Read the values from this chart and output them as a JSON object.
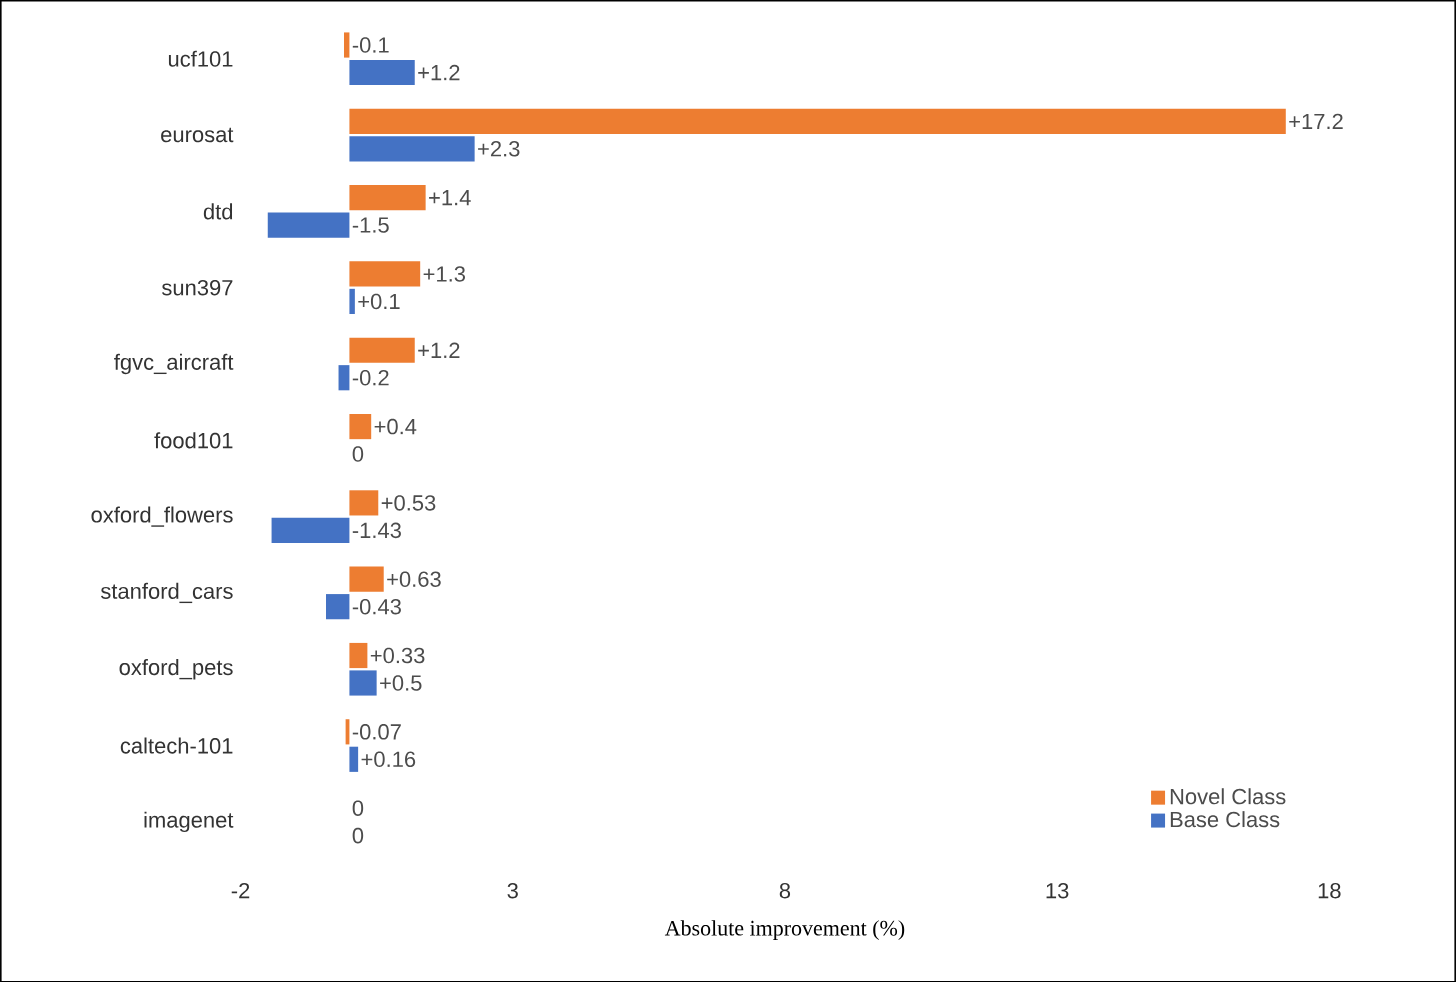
{
  "chart_data": {
    "type": "bar",
    "orientation": "horizontal",
    "xlabel": "Absolute improvement (%)",
    "categories": [
      "ucf101",
      "eurosat",
      "dtd",
      "sun397",
      "fgvc_aircraft",
      "food101",
      "oxford_flowers",
      "stanford_cars",
      "oxford_pets",
      "caltech-101",
      "imagenet"
    ],
    "series": [
      {
        "name": "Novel Class",
        "color": "#ed7d31",
        "values": [
          -0.1,
          17.2,
          1.4,
          1.3,
          1.2,
          0.4,
          0.53,
          0.63,
          0.33,
          -0.07,
          0
        ],
        "value_labels": [
          "-0.1",
          "+17.2",
          "+1.4",
          "+1.3",
          "+1.2",
          "+0.4",
          "+0.53",
          "+0.63",
          "+0.33",
          "-0.07",
          "0"
        ]
      },
      {
        "name": "Base Class",
        "color": "#4472c4",
        "values": [
          1.2,
          2.3,
          -1.5,
          0.1,
          -0.2,
          0,
          -1.43,
          -0.43,
          0.5,
          0.16,
          0
        ],
        "value_labels": [
          "+1.2",
          "+2.3",
          "-1.5",
          "+0.1",
          "-0.2",
          "0",
          "-1.43",
          "-0.43",
          "+0.5",
          "+0.16",
          "0"
        ]
      }
    ],
    "xlim": [
      -2,
      18
    ],
    "xticks": [
      -2,
      3,
      8,
      13,
      18
    ],
    "legend": "bottom right"
  }
}
